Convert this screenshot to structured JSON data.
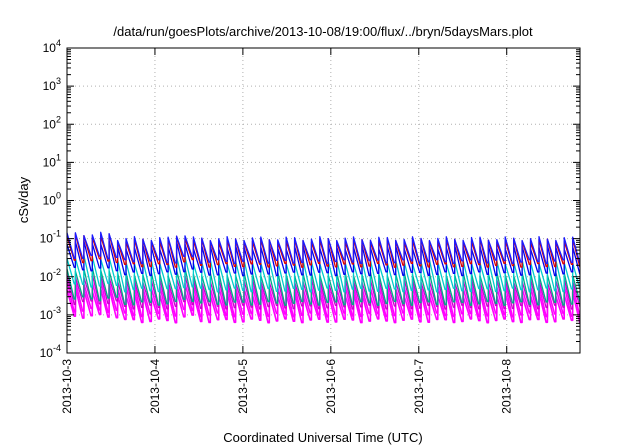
{
  "chart_data": {
    "type": "line",
    "title": "/data/run/goesPlots/archive/2013-10-08/19:00/flux/../bryn/5daysMars.plot",
    "xlabel": "Coordinated Universal Time (UTC)",
    "ylabel": "cSv/day",
    "yscale": "log",
    "ylim": [
      0.0001,
      10000
    ],
    "y_ticks": [
      {
        "base": "10",
        "exp": "-4"
      },
      {
        "base": "10",
        "exp": "-3"
      },
      {
        "base": "10",
        "exp": "-2"
      },
      {
        "base": "10",
        "exp": "-1"
      },
      {
        "base": "10",
        "exp": "0"
      },
      {
        "base": "10",
        "exp": "1"
      },
      {
        "base": "10",
        "exp": "2"
      },
      {
        "base": "10",
        "exp": "3"
      },
      {
        "base": "10",
        "exp": "4"
      }
    ],
    "xlim": [
      "2013-10-03",
      "2013-10-08T20:00"
    ],
    "x_ticks": [
      "2013-10-3",
      "2013-10-4",
      "2013-10-5",
      "2013-10-6",
      "2013-10-7",
      "2013-10-8"
    ],
    "grid": true,
    "legend": "none",
    "sawtooth_cycle_hours": 2.3,
    "series": [
      {
        "color": "#ff00ff",
        "peak_value": 0.0035,
        "trough_value": 0.0007
      },
      {
        "color": "#ff00ff",
        "peak_value": 0.0055,
        "trough_value": 0.001
      },
      {
        "color": "#cc00cc",
        "peak_value": 0.008,
        "trough_value": 0.0016
      },
      {
        "color": "#00aa88",
        "peak_value": 0.012,
        "trough_value": 0.002
      },
      {
        "color": "#00cccc",
        "peak_value": 0.025,
        "trough_value": 0.0045
      },
      {
        "color": "#0000ee",
        "peak_value": 0.06,
        "trough_value": 0.012
      },
      {
        "color": "#dd0000",
        "peak_value": 0.09,
        "trough_value": 0.02
      },
      {
        "color": "#1a1aff",
        "peak_value": 0.1,
        "trough_value": 0.025
      }
    ]
  }
}
